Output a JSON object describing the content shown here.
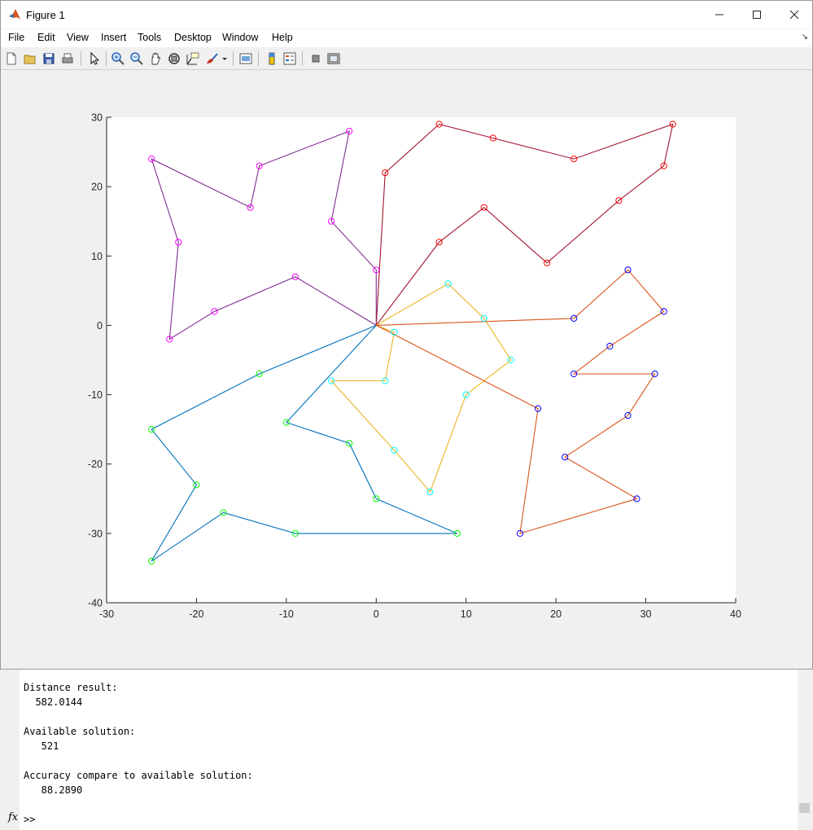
{
  "window": {
    "title": "Figure 1"
  },
  "menu": [
    "File",
    "Edit",
    "View",
    "Insert",
    "Tools",
    "Desktop",
    "Window",
    "Help"
  ],
  "toolbar_icons": [
    "new-figure-icon",
    "open-file-icon",
    "save-icon",
    "print-icon",
    "pointer-icon",
    "zoom-in-icon",
    "zoom-out-icon",
    "pan-icon",
    "rotate-3d-icon",
    "data-cursor-icon",
    "brush-icon",
    "link-plot-icon",
    "colorbar-icon",
    "legend-icon",
    "hide-plot-tools-icon",
    "show-plot-tools-icon"
  ],
  "chart_data": {
    "type": "line",
    "title": "",
    "xlabel": "",
    "ylabel": "",
    "xlim": [
      -30,
      40
    ],
    "ylim": [
      -40,
      30
    ],
    "xticks": [
      -30,
      -20,
      -10,
      0,
      10,
      20,
      30,
      40
    ],
    "yticks": [
      30,
      20,
      10,
      0,
      -10,
      -20,
      -30,
      -40
    ],
    "grid": false,
    "depot": [
      0,
      0
    ],
    "series": [
      {
        "color": "#7E2F8E",
        "marker_color": "#ff00ff",
        "points": [
          [
            0,
            0
          ],
          [
            -9,
            7
          ],
          [
            -18,
            2
          ],
          [
            -23,
            -2
          ],
          [
            -22,
            12
          ],
          [
            -25,
            24
          ],
          [
            -14,
            17
          ],
          [
            -13,
            23
          ],
          [
            -3,
            28
          ],
          [
            -5,
            15
          ],
          [
            0,
            8
          ],
          [
            0,
            0
          ]
        ]
      },
      {
        "color": "#A2142F",
        "marker_color": "#ff0000",
        "points": [
          [
            0,
            0
          ],
          [
            1,
            22
          ],
          [
            7,
            29
          ],
          [
            13,
            27
          ],
          [
            22,
            24
          ],
          [
            33,
            29
          ],
          [
            32,
            23
          ],
          [
            27,
            18
          ],
          [
            19,
            9
          ],
          [
            12,
            17
          ],
          [
            7,
            12
          ],
          [
            0,
            0
          ]
        ]
      },
      {
        "color": "#EDB120",
        "marker_color": "#00ffff",
        "points": [
          [
            0,
            0
          ],
          [
            8,
            6
          ],
          [
            12,
            1
          ],
          [
            15,
            -5
          ],
          [
            10,
            -10
          ],
          [
            6,
            -24
          ],
          [
            2,
            -18
          ],
          [
            -5,
            -8
          ],
          [
            1,
            -8
          ],
          [
            2,
            -1
          ],
          [
            0,
            0
          ]
        ]
      },
      {
        "color": "#D95319",
        "marker_color": "#0000ff",
        "points": [
          [
            0,
            0
          ],
          [
            22,
            1
          ],
          [
            28,
            8
          ],
          [
            32,
            2
          ],
          [
            26,
            -3
          ],
          [
            22,
            -7
          ],
          [
            31,
            -7
          ],
          [
            28,
            -13
          ],
          [
            21,
            -19
          ],
          [
            29,
            -25
          ],
          [
            16,
            -30
          ],
          [
            18,
            -12
          ],
          [
            0,
            0
          ]
        ]
      },
      {
        "color": "#0072BD",
        "marker_color": "#00ff00",
        "points": [
          [
            0,
            0
          ],
          [
            -13,
            -7
          ],
          [
            -25,
            -15
          ],
          [
            -20,
            -23
          ],
          [
            -25,
            -34
          ],
          [
            -17,
            -27
          ],
          [
            -9,
            -30
          ],
          [
            9,
            -30
          ],
          [
            0,
            -25
          ],
          [
            -3,
            -17
          ],
          [
            -10,
            -14
          ],
          [
            0,
            0
          ]
        ]
      }
    ]
  },
  "console": {
    "label1": "Distance result:",
    "value1": "  582.0144",
    "label2": "Available solution:",
    "value2": "   521",
    "label3": "Accuracy compare to available solution:",
    "value3": "   88.2890",
    "prompt": ">>"
  }
}
